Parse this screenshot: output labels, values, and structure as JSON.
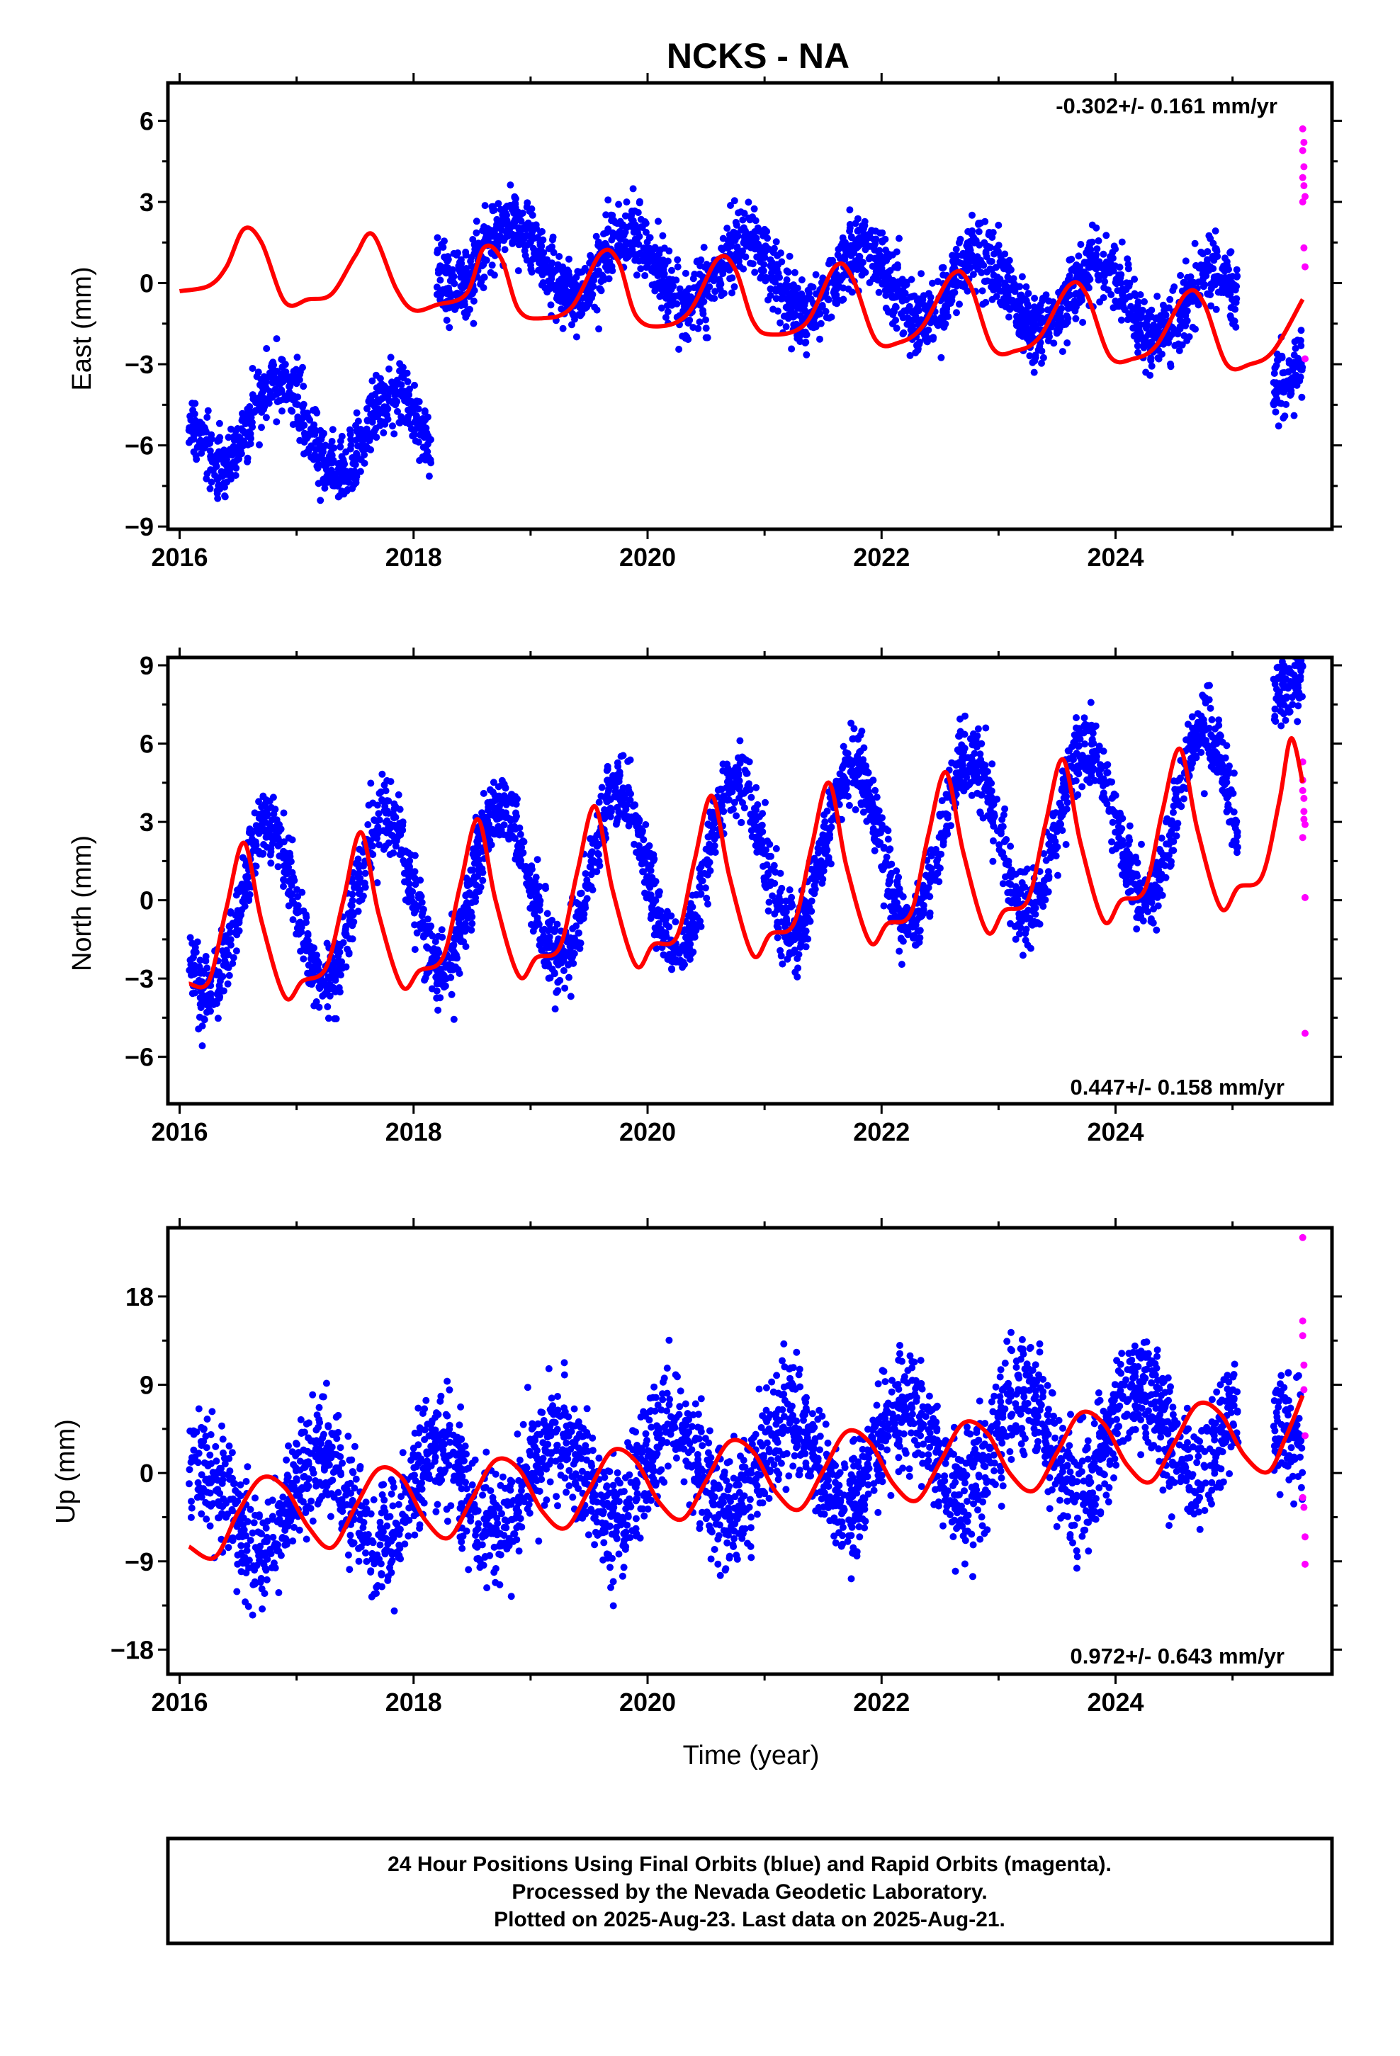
{
  "title": "NCKS - NA",
  "xlabel": "Time (year)",
  "caption": {
    "line1": "24 Hour Positions Using Final Orbits (blue) and Rapid Orbits (magenta).",
    "line2": "Processed by the Nevada Geodetic Laboratory.",
    "line3": "Plotted on 2025-Aug-23. Last data on 2025-Aug-21."
  },
  "colors": {
    "final": "#0000ff",
    "rapid": "#ff00ff",
    "model": "#ff0000",
    "frame": "#000000"
  },
  "chart_data": [
    {
      "type": "scatter",
      "component": "east",
      "ylabel": "East (mm)",
      "rate_text": "-0.302+/- 0.161 mm/yr",
      "rate_position": "top-right",
      "xlim": [
        2015.9,
        2025.85
      ],
      "ylim": [
        -9.1,
        7.4
      ],
      "xticks": [
        2016,
        2018,
        2020,
        2022,
        2024
      ],
      "yticks": [
        -9,
        -6,
        -3,
        0,
        3,
        6
      ],
      "grid": false,
      "series": [
        {
          "name": "Final Orbits (blue)",
          "segments": [
            {
              "t0": 2016.08,
              "t1": 2018.15,
              "offset": -5.0,
              "amp": 1.6,
              "phase": 0.6,
              "trend": -0.302,
              "scatter": 0.9,
              "count": 700
            },
            {
              "t0": 2018.2,
              "t1": 2025.05,
              "offset": 1.8,
              "amp": 1.3,
              "phase": 0.6,
              "trend": -0.302,
              "scatter": 0.9,
              "count": 2450
            },
            {
              "t0": 2025.35,
              "t1": 2025.6,
              "offset": 0.0,
              "amp": 1.0,
              "phase": 0.6,
              "trend": -0.302,
              "scatter": 0.9,
              "count": 90
            }
          ]
        },
        {
          "name": "Rapid Orbits (magenta)",
          "points": [
            [
              2025.6,
              5.7
            ],
            [
              2025.6,
              4.9
            ],
            [
              2025.61,
              4.3
            ],
            [
              2025.61,
              3.6
            ],
            [
              2025.62,
              3.2
            ],
            [
              2025.6,
              3.0
            ],
            [
              2025.61,
              1.3
            ],
            [
              2025.62,
              0.6
            ],
            [
              2025.62,
              -2.8
            ],
            [
              2025.6,
              3.9
            ],
            [
              2025.61,
              5.2
            ]
          ]
        }
      ],
      "model": {
        "name": "Model fit (red)",
        "points": [
          [
            2016.0,
            -0.3
          ],
          [
            2016.25,
            -0.1
          ],
          [
            2016.4,
            0.6
          ],
          [
            2016.55,
            2.0
          ],
          [
            2016.7,
            1.5
          ],
          [
            2016.9,
            -0.7
          ],
          [
            2017.1,
            -0.6
          ],
          [
            2017.3,
            -0.4
          ],
          [
            2017.5,
            1.0
          ],
          [
            2017.65,
            1.8
          ],
          [
            2017.85,
            -0.2
          ],
          [
            2018.0,
            -1.0
          ],
          [
            2018.2,
            -0.8
          ],
          [
            2018.45,
            -0.4
          ],
          [
            2018.6,
            1.3
          ],
          [
            2018.75,
            0.9
          ],
          [
            2018.9,
            -1.0
          ],
          [
            2019.1,
            -1.3
          ],
          [
            2019.35,
            -0.9
          ],
          [
            2019.6,
            1.1
          ],
          [
            2019.75,
            0.8
          ],
          [
            2019.9,
            -1.2
          ],
          [
            2020.1,
            -1.6
          ],
          [
            2020.35,
            -1.1
          ],
          [
            2020.6,
            0.9
          ],
          [
            2020.75,
            0.5
          ],
          [
            2020.9,
            -1.4
          ],
          [
            2021.05,
            -1.9
          ],
          [
            2021.35,
            -1.5
          ],
          [
            2021.6,
            0.6
          ],
          [
            2021.75,
            0.2
          ],
          [
            2021.95,
            -2.1
          ],
          [
            2022.15,
            -2.2
          ],
          [
            2022.35,
            -1.6
          ],
          [
            2022.6,
            0.3
          ],
          [
            2022.75,
            0.0
          ],
          [
            2022.95,
            -2.4
          ],
          [
            2023.15,
            -2.5
          ],
          [
            2023.35,
            -2.0
          ],
          [
            2023.6,
            -0.1
          ],
          [
            2023.75,
            -0.4
          ],
          [
            2023.95,
            -2.7
          ],
          [
            2024.15,
            -2.8
          ],
          [
            2024.35,
            -2.3
          ],
          [
            2024.6,
            -0.4
          ],
          [
            2024.75,
            -0.7
          ],
          [
            2024.95,
            -3.0
          ],
          [
            2025.15,
            -3.0
          ],
          [
            2025.35,
            -2.5
          ],
          [
            2025.6,
            -0.6
          ]
        ]
      }
    },
    {
      "type": "scatter",
      "component": "north",
      "ylabel": "North (mm)",
      "rate_text": "0.447+/- 0.158 mm/yr",
      "rate_position": "bottom-right",
      "xlim": [
        2015.9,
        2025.85
      ],
      "ylim": [
        -7.8,
        9.3
      ],
      "xticks": [
        2016,
        2018,
        2020,
        2022,
        2024
      ],
      "yticks": [
        -6,
        -3,
        0,
        3,
        6,
        9
      ],
      "grid": false,
      "series": [
        {
          "name": "Final Orbits (blue)",
          "segments": [
            {
              "t0": 2016.08,
              "t1": 2025.05,
              "offset": -0.6,
              "amp": 3.1,
              "phase": 0.5,
              "trend": 0.447,
              "scatter": 1.0,
              "count": 3100
            },
            {
              "t0": 2025.35,
              "t1": 2025.6,
              "offset": 4.0,
              "amp": 0.5,
              "phase": 0.5,
              "trend": 0.447,
              "scatter": 0.9,
              "count": 90
            }
          ]
        },
        {
          "name": "Rapid Orbits (magenta)",
          "points": [
            [
              2025.6,
              5.3
            ],
            [
              2025.6,
              4.6
            ],
            [
              2025.61,
              3.9
            ],
            [
              2025.61,
              3.4
            ],
            [
              2025.62,
              2.9
            ],
            [
              2025.6,
              2.4
            ],
            [
              2025.61,
              3.1
            ],
            [
              2025.62,
              0.1
            ],
            [
              2025.62,
              -5.1
            ],
            [
              2025.6,
              4.2
            ]
          ]
        }
      ],
      "model": {
        "name": "Model fit (red)",
        "points": [
          [
            2016.08,
            -3.2
          ],
          [
            2016.25,
            -3.1
          ],
          [
            2016.4,
            -0.3
          ],
          [
            2016.55,
            2.2
          ],
          [
            2016.7,
            -0.8
          ],
          [
            2016.9,
            -3.7
          ],
          [
            2017.05,
            -3.1
          ],
          [
            2017.25,
            -2.6
          ],
          [
            2017.4,
            0.0
          ],
          [
            2017.55,
            2.6
          ],
          [
            2017.7,
            -0.5
          ],
          [
            2017.9,
            -3.3
          ],
          [
            2018.05,
            -2.7
          ],
          [
            2018.25,
            -2.2
          ],
          [
            2018.4,
            0.6
          ],
          [
            2018.55,
            3.1
          ],
          [
            2018.7,
            0.0
          ],
          [
            2018.9,
            -2.9
          ],
          [
            2019.05,
            -2.2
          ],
          [
            2019.25,
            -1.8
          ],
          [
            2019.4,
            1.1
          ],
          [
            2019.55,
            3.6
          ],
          [
            2019.7,
            0.4
          ],
          [
            2019.9,
            -2.5
          ],
          [
            2020.05,
            -1.7
          ],
          [
            2020.25,
            -1.4
          ],
          [
            2020.4,
            1.5
          ],
          [
            2020.55,
            4.0
          ],
          [
            2020.7,
            0.9
          ],
          [
            2020.9,
            -2.1
          ],
          [
            2021.05,
            -1.3
          ],
          [
            2021.25,
            -0.9
          ],
          [
            2021.4,
            2.0
          ],
          [
            2021.55,
            4.5
          ],
          [
            2021.7,
            1.3
          ],
          [
            2021.9,
            -1.6
          ],
          [
            2022.05,
            -0.9
          ],
          [
            2022.25,
            -0.5
          ],
          [
            2022.4,
            2.5
          ],
          [
            2022.55,
            4.9
          ],
          [
            2022.7,
            1.8
          ],
          [
            2022.9,
            -1.2
          ],
          [
            2023.05,
            -0.4
          ],
          [
            2023.25,
            0.0
          ],
          [
            2023.4,
            2.9
          ],
          [
            2023.55,
            5.4
          ],
          [
            2023.7,
            2.2
          ],
          [
            2023.9,
            -0.8
          ],
          [
            2024.05,
            0.0
          ],
          [
            2024.25,
            0.4
          ],
          [
            2024.4,
            3.4
          ],
          [
            2024.55,
            5.8
          ],
          [
            2024.7,
            2.7
          ],
          [
            2024.9,
            -0.3
          ],
          [
            2025.05,
            0.5
          ],
          [
            2025.25,
            0.9
          ],
          [
            2025.4,
            3.8
          ],
          [
            2025.5,
            6.2
          ],
          [
            2025.6,
            4.5
          ]
        ]
      }
    },
    {
      "type": "scatter",
      "component": "up",
      "ylabel": "Up (mm)",
      "rate_text": "0.972+/- 0.643 mm/yr",
      "rate_position": "bottom-right",
      "xlim": [
        2015.9,
        2025.85
      ],
      "ylim": [
        -20.5,
        25
      ],
      "xticks": [
        2016,
        2018,
        2020,
        2022,
        2024
      ],
      "yticks": [
        -18,
        -9,
        0,
        9,
        18
      ],
      "grid": false,
      "series": [
        {
          "name": "Final Orbits (blue)",
          "segments": [
            {
              "t0": 2016.08,
              "t1": 2025.05,
              "offset": -4.0,
              "amp": 4.5,
              "phase": 0.95,
              "trend": 0.972,
              "scatter": 4.2,
              "count": 3100
            },
            {
              "t0": 2025.35,
              "t1": 2025.6,
              "offset": -5.0,
              "amp": 1.0,
              "phase": 0.95,
              "trend": 0.972,
              "scatter": 4.0,
              "count": 90
            }
          ]
        },
        {
          "name": "Rapid Orbits (magenta)",
          "points": [
            [
              2025.6,
              24.0
            ],
            [
              2025.6,
              15.5
            ],
            [
              2025.61,
              11.0
            ],
            [
              2025.61,
              8.5
            ],
            [
              2025.62,
              3.8
            ],
            [
              2025.6,
              -2.5
            ],
            [
              2025.61,
              -3.5
            ],
            [
              2025.62,
              -6.5
            ],
            [
              2025.62,
              -9.3
            ],
            [
              2025.6,
              14.0
            ]
          ]
        }
      ],
      "model": {
        "name": "Model fit (red)",
        "points": [
          [
            2016.08,
            -7.5
          ],
          [
            2016.3,
            -8.6
          ],
          [
            2016.5,
            -4.0
          ],
          [
            2016.7,
            -0.5
          ],
          [
            2016.9,
            -1.5
          ],
          [
            2017.1,
            -5.5
          ],
          [
            2017.3,
            -7.6
          ],
          [
            2017.5,
            -3.5
          ],
          [
            2017.7,
            0.4
          ],
          [
            2017.9,
            -0.5
          ],
          [
            2018.1,
            -4.8
          ],
          [
            2018.3,
            -6.6
          ],
          [
            2018.5,
            -2.6
          ],
          [
            2018.7,
            1.3
          ],
          [
            2018.9,
            0.4
          ],
          [
            2019.1,
            -3.9
          ],
          [
            2019.3,
            -5.6
          ],
          [
            2019.5,
            -1.7
          ],
          [
            2019.7,
            2.3
          ],
          [
            2019.9,
            1.2
          ],
          [
            2020.1,
            -3.0
          ],
          [
            2020.3,
            -4.7
          ],
          [
            2020.5,
            -0.8
          ],
          [
            2020.7,
            3.2
          ],
          [
            2020.9,
            2.2
          ],
          [
            2021.1,
            -2.0
          ],
          [
            2021.3,
            -3.7
          ],
          [
            2021.5,
            0.2
          ],
          [
            2021.7,
            4.2
          ],
          [
            2021.9,
            3.1
          ],
          [
            2022.1,
            -1.1
          ],
          [
            2022.3,
            -2.8
          ],
          [
            2022.5,
            1.1
          ],
          [
            2022.7,
            5.1
          ],
          [
            2022.9,
            4.1
          ],
          [
            2023.1,
            -0.1
          ],
          [
            2023.3,
            -1.8
          ],
          [
            2023.5,
            2.1
          ],
          [
            2023.7,
            6.1
          ],
          [
            2023.9,
            5.0
          ],
          [
            2024.1,
            0.8
          ],
          [
            2024.3,
            -0.9
          ],
          [
            2024.5,
            3.0
          ],
          [
            2024.7,
            7.0
          ],
          [
            2024.9,
            6.0
          ],
          [
            2025.1,
            1.8
          ],
          [
            2025.3,
            0.1
          ],
          [
            2025.45,
            3.5
          ],
          [
            2025.6,
            7.9
          ]
        ]
      }
    }
  ]
}
